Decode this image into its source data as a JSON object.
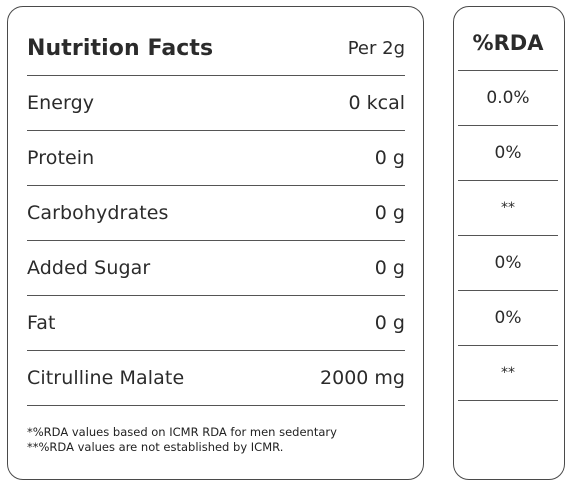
{
  "facts": {
    "title": "Nutrition Facts",
    "serving": "Per 2g",
    "rows": [
      {
        "name": "Energy",
        "value": "0 kcal"
      },
      {
        "name": "Protein",
        "value": "0 g"
      },
      {
        "name": "Carbohydrates",
        "value": "0 g"
      },
      {
        "name": "Added Sugar",
        "value": "0 g"
      },
      {
        "name": "Fat",
        "value": "0 g"
      },
      {
        "name": "Citrulline Malate",
        "value": "2000 mg"
      }
    ],
    "footnote_1": "*%RDA values based on ICMR RDA for men sedentary",
    "footnote_2": "**%RDA values are not established by ICMR."
  },
  "rda": {
    "title": "%RDA",
    "values": [
      "0.0%",
      "0%",
      "**",
      "0%",
      "0%",
      "**",
      ""
    ]
  }
}
